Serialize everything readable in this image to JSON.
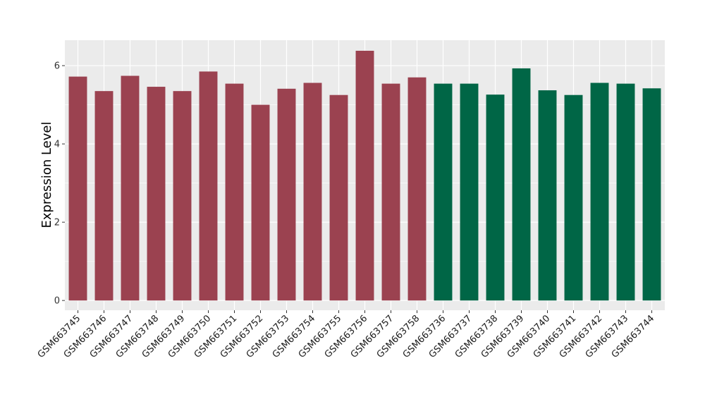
{
  "chart_data": {
    "type": "bar",
    "ylabel": "Expression Level",
    "xlabel": "",
    "ylim": [
      -0.25,
      6.65
    ],
    "yticks": [
      0,
      2,
      4,
      6
    ],
    "grid": true,
    "colors": {
      "group1": "#9b4250",
      "group2": "#006646",
      "panel": "#ebebeb",
      "grid": "#ffffff"
    },
    "categories": [
      "GSM663745",
      "GSM663746",
      "GSM663747",
      "GSM663748",
      "GSM663749",
      "GSM663750",
      "GSM663751",
      "GSM663752",
      "GSM663753",
      "GSM663754",
      "GSM663755",
      "GSM663756",
      "GSM663757",
      "GSM663758",
      "GSM663736",
      "GSM663737",
      "GSM663738",
      "GSM663739",
      "GSM663740",
      "GSM663741",
      "GSM663742",
      "GSM663743",
      "GSM663744"
    ],
    "values": [
      5.72,
      5.35,
      5.74,
      5.46,
      5.35,
      5.85,
      5.54,
      5.0,
      5.41,
      5.56,
      5.25,
      6.38,
      5.54,
      5.7,
      5.54,
      5.54,
      5.26,
      5.93,
      5.37,
      5.25,
      5.56,
      5.54,
      5.42
    ],
    "groups": [
      "group1",
      "group1",
      "group1",
      "group1",
      "group1",
      "group1",
      "group1",
      "group1",
      "group1",
      "group1",
      "group1",
      "group1",
      "group1",
      "group1",
      "group2",
      "group2",
      "group2",
      "group2",
      "group2",
      "group2",
      "group2",
      "group2",
      "group2"
    ]
  }
}
